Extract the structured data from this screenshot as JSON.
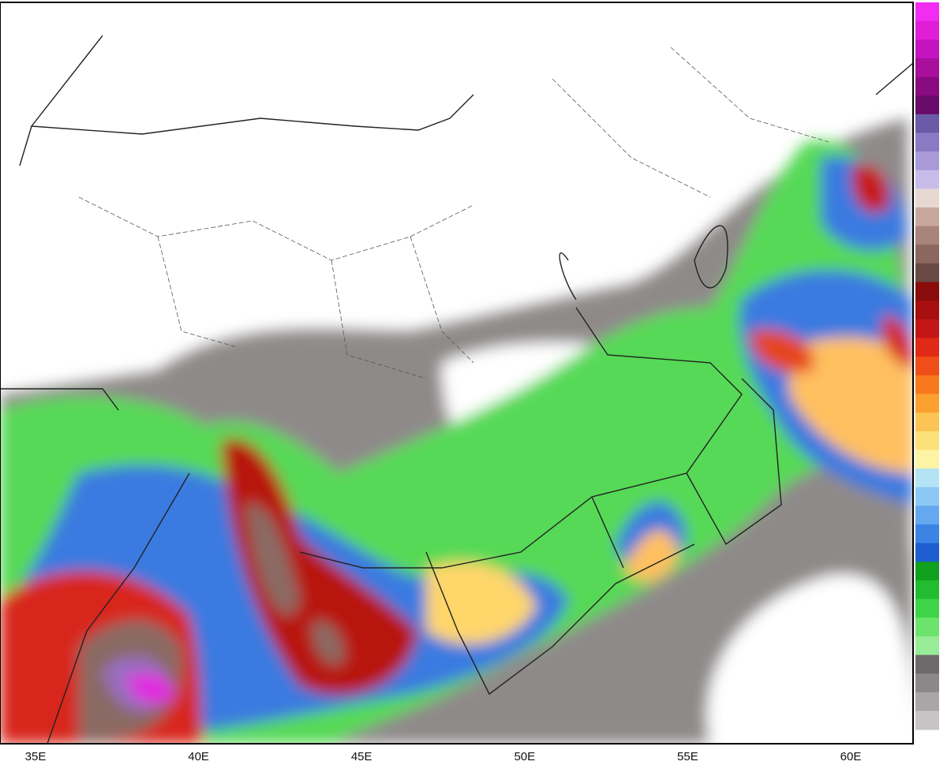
{
  "map": {
    "lon_labels": [
      "35E",
      "40E",
      "45E",
      "50E",
      "55E",
      "60E"
    ]
  }
}
